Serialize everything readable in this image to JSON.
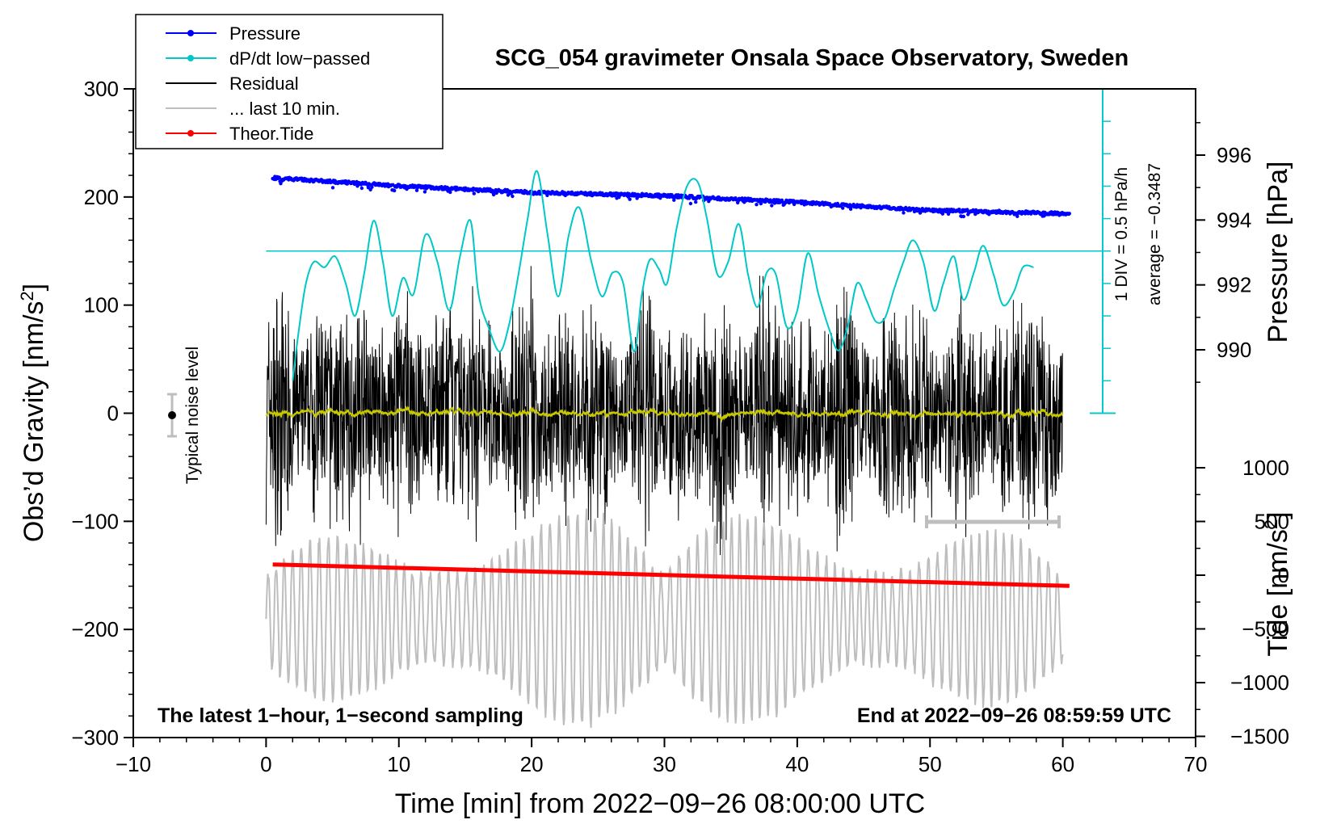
{
  "chart_data": {
    "type": "line",
    "title": "SCG_054 gravimeter Onsala Space Observatory, Sweden",
    "xlabel": "Time [min] from 2022−09−26 08:00:00 UTC",
    "ylabel_left": "Obs’d Gravity [nm/s",
    "ylabel_left_sup": "2",
    "ylabel_left_end": "]",
    "ylabel_right_pressure": "Pressure [hPa]",
    "ylabel_right_tide": "Tide [nm/s",
    "ylabel_right_tide_sup": "2",
    "ylabel_right_tide_end": "]",
    "xlim": [
      -10,
      70
    ],
    "ylim_left": [
      -300,
      300
    ],
    "x_ticks": [
      "−10",
      "0",
      "10",
      "20",
      "30",
      "40",
      "50",
      "60",
      "70"
    ],
    "y_ticks_left": [
      "300",
      "200",
      "100",
      "0",
      "−100",
      "−200",
      "−300"
    ],
    "pressure_ticks": [
      "996",
      "994",
      "992",
      "990"
    ],
    "tide_ticks": [
      "1000",
      "500",
      "0",
      "−500",
      "−1000",
      "−1500"
    ],
    "legend": [
      {
        "label": "Pressure",
        "color": "#0000ff",
        "marker": true
      },
      {
        "label": "dP/dt low−passed",
        "color": "#00c8c8",
        "marker": true
      },
      {
        "label": "Residual",
        "color": "#000000",
        "marker": false
      },
      {
        "label": "... last 10 min.",
        "color": "#bebebe",
        "marker": false
      },
      {
        "label": "Theor.Tide",
        "color": "#ff0000",
        "marker": true
      }
    ],
    "annotations": {
      "bottom_left": "The latest 1−hour, 1−second sampling",
      "bottom_right": "End at 2022−09−26 08:59:59 UTC",
      "noise": "Typical noise level",
      "dpdt_scale": "1 DIV = 0.5 hPa/h",
      "dpdt_average": "average = −0.3487"
    },
    "series": [
      {
        "name": "Pressure",
        "unit": "hPa",
        "x": [
          0.5,
          10,
          20,
          30,
          40,
          50,
          60.5
        ],
        "values": [
          995.3,
          995.05,
          994.85,
          994.75,
          994.55,
          994.3,
          994.2
        ]
      },
      {
        "name": "Theor.Tide",
        "unit": "nm/s2",
        "x": [
          0.5,
          60.5
        ],
        "values": [
          100,
          -100
        ]
      },
      {
        "name": "dP/dt low-passed",
        "unit": "gravity-axis nm/s2",
        "x": [
          2,
          2.5,
          3,
          3.6,
          4.4,
          5.2,
          6,
          6.7,
          7.4,
          8.1,
          8.8,
          9.5,
          10.3,
          11.1,
          12,
          12.9,
          13.8,
          14.6,
          15.4,
          16,
          16.8,
          17.6,
          18.3,
          19,
          19.7,
          20.4,
          21.2,
          22,
          22.8,
          23.6,
          24.5,
          25.3,
          26.1,
          26.9,
          27.7,
          28.3,
          28.9,
          29.6,
          30.2,
          30.9,
          31.7,
          32.5,
          33.2,
          34,
          34.8,
          35.6,
          36.3,
          37,
          37.7,
          38.4,
          39.2,
          40,
          40.8,
          41.6,
          42.4,
          43.1,
          43.8,
          44.5,
          45.2,
          45.9,
          46.6,
          47.3,
          48,
          48.7,
          49.5,
          50.3,
          51,
          51.8,
          52.5,
          53.3,
          54,
          54.8,
          55.5,
          56.3,
          57,
          57.8
        ],
        "values": [
          30,
          80,
          120,
          140,
          135,
          145,
          120,
          90,
          130,
          178,
          140,
          90,
          125,
          110,
          165,
          140,
          95,
          145,
          178,
          110,
          78,
          57,
          82,
          128,
          180,
          224,
          165,
          108,
          165,
          190,
          140,
          108,
          130,
          120,
          57,
          110,
          142,
          133,
          120,
          170,
          210,
          214,
          180,
          128,
          140,
          175,
          128,
          98,
          130,
          128,
          80,
          95,
          148,
          110,
          78,
          58,
          80,
          120,
          105,
          85,
          88,
          115,
          140,
          160,
          140,
          95,
          120,
          145,
          105,
          130,
          155,
          128,
          100,
          112,
          135,
          135
        ]
      },
      {
        "name": "Residual",
        "unit": "nm/s2",
        "x": [
          0,
          60
        ],
        "values": [
          0,
          0
        ],
        "envelope": [
          55,
          95
        ]
      },
      {
        "name": "... last 10 min.",
        "unit": "nm/s2",
        "x": [
          0,
          60
        ],
        "values": [
          -190,
          -190
        ],
        "envelope": [
          40,
          70
        ]
      }
    ]
  }
}
